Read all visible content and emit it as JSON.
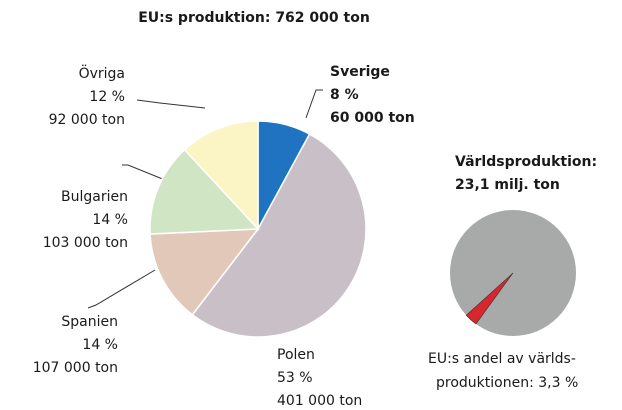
{
  "chart_data": [
    {
      "type": "pie",
      "title": "EU:s produktion: 762 000 ton",
      "categories": [
        "Sverige",
        "Polen",
        "Spanien",
        "Bulgarien",
        "Övriga"
      ],
      "values": [
        8,
        53,
        14,
        14,
        12
      ],
      "value_labels": [
        "8 %",
        "53 %",
        "14 %",
        "14 %",
        "12 %"
      ],
      "amount_labels": [
        "60 000 ton",
        "401 000 ton",
        "107 000 ton",
        "103 000 ton",
        "92 000 ton"
      ],
      "colors": [
        "#1f73c0",
        "#c9bfc7",
        "#e2c8b8",
        "#cfe5c4",
        "#fbf5c6"
      ]
    },
    {
      "type": "pie",
      "title_lines": [
        "Världsproduktion:",
        "23,1 milj. ton"
      ],
      "values": [
        3.3
      ],
      "colors": [
        "#d7262e"
      ],
      "annotation_lines": [
        "EU:s andel av världs-",
        "produktionen: 3,3 %"
      ]
    }
  ]
}
